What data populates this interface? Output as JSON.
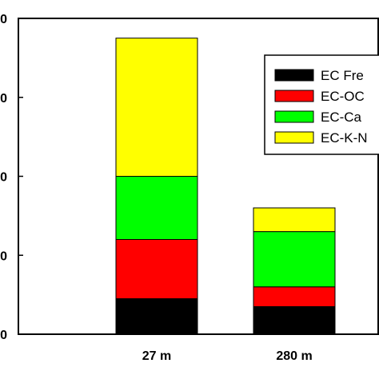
{
  "chart_data": {
    "type": "bar",
    "stacked": true,
    "categories": [
      "27 m",
      "280 m"
    ],
    "series": [
      {
        "name": "EC Fre",
        "color": "#000000",
        "values": [
          0.45,
          0.35
        ]
      },
      {
        "name": "EC-OC",
        "color": "#ff0000",
        "values": [
          0.75,
          0.25
        ]
      },
      {
        "name": "EC-Ca",
        "color": "#00ff00",
        "values": [
          0.8,
          0.7
        ]
      },
      {
        "name": "EC-K-N",
        "color": "#ffff00",
        "values": [
          1.75,
          0.3
        ]
      }
    ],
    "y_tick_labels": [
      "0",
      "0",
      "0",
      "0",
      "0"
    ],
    "ylim": [
      0,
      4
    ],
    "grid": false,
    "legend_position": "top-right",
    "title": "",
    "xlabel": "",
    "ylabel": ""
  }
}
